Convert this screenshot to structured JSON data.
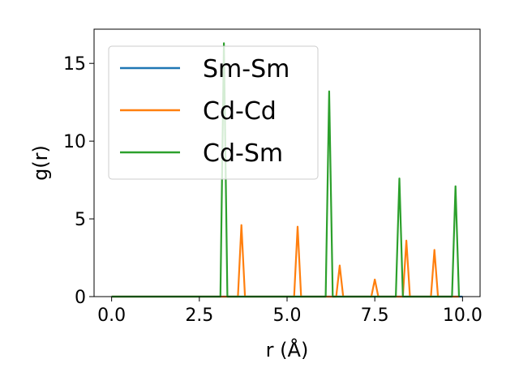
{
  "chart_data": {
    "type": "line",
    "xlabel": "r (Å)",
    "ylabel": "g(r)",
    "xlim": [
      -0.5,
      10.5
    ],
    "ylim": [
      0,
      17.2
    ],
    "xticks": [
      0.0,
      2.5,
      5.0,
      7.5,
      10.0
    ],
    "xtick_labels": [
      "0.0",
      "2.5",
      "5.0",
      "7.5",
      "10.0"
    ],
    "yticks": [
      0,
      5,
      10,
      15
    ],
    "ytick_labels": [
      "0",
      "5",
      "10",
      "15"
    ],
    "grid": false,
    "legend_placement": "top-left",
    "series": [
      {
        "name": "Sm-Sm",
        "color": "#1f77b4",
        "x": [
          0.0,
          10.0
        ],
        "y": [
          0,
          0
        ]
      },
      {
        "name": "Cd-Cd",
        "color": "#ff7f0e",
        "x": [
          0.0,
          3.6,
          3.7,
          3.8,
          5.2,
          5.3,
          5.4,
          6.4,
          6.5,
          6.6,
          7.4,
          7.5,
          7.6,
          8.3,
          8.4,
          8.5,
          9.1,
          9.2,
          9.3,
          9.9
        ],
        "y": [
          0,
          0,
          4.6,
          0,
          0,
          4.5,
          0,
          0,
          2.0,
          0,
          0,
          1.1,
          0,
          0,
          3.6,
          0,
          0,
          3.0,
          0,
          0
        ]
      },
      {
        "name": "Cd-Sm",
        "color": "#2ca02c",
        "x": [
          0.0,
          3.1,
          3.2,
          3.3,
          6.1,
          6.2,
          6.3,
          8.1,
          8.2,
          8.3,
          9.7,
          9.8,
          9.9
        ],
        "y": [
          0,
          0,
          16.3,
          0,
          0,
          13.2,
          0,
          0,
          7.6,
          0,
          0,
          7.1,
          0
        ]
      }
    ]
  }
}
